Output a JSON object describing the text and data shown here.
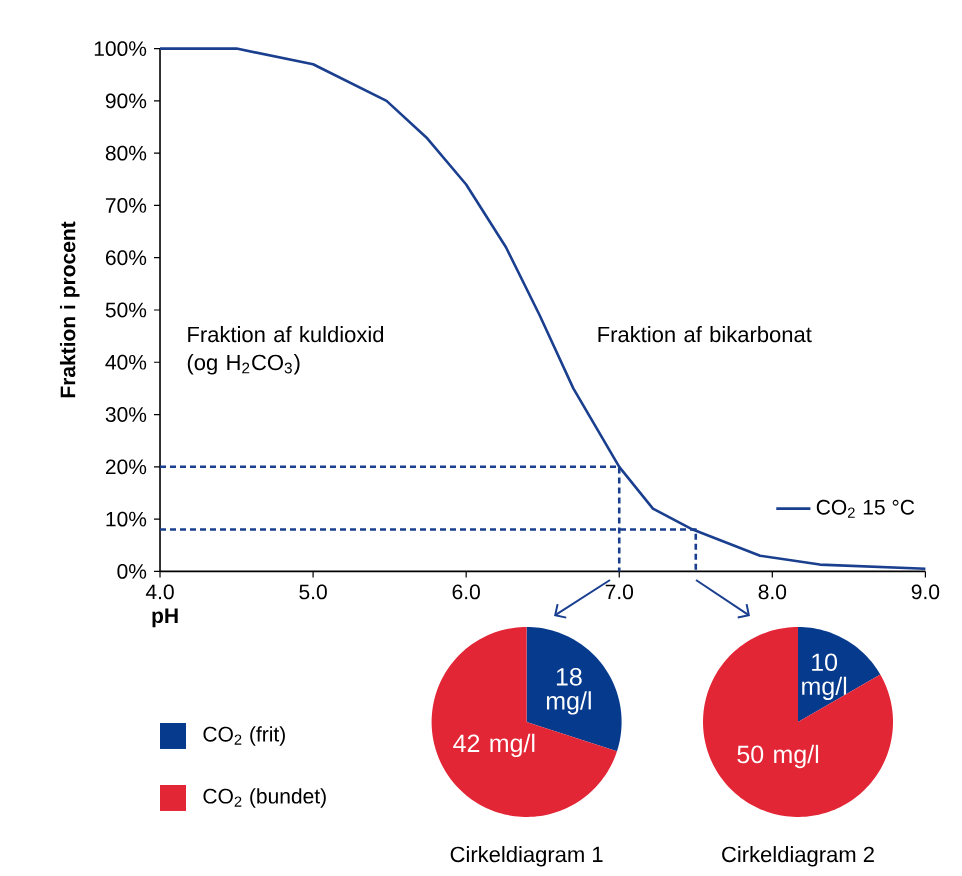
{
  "chart_data": [
    {
      "type": "line",
      "ylabel": "Fraktion i procent",
      "xlabel": "pH",
      "annotations": [
        "Fraktion af kuldioxid (og H$_{2}$CO$_{3}$)",
        "Fraktion af bikarbonat"
      ],
      "series": [
        {
          "name": "CO$_{2}$ 15 °C",
          "color": "#1a3f8f",
          "x": [
            4.0,
            4.5,
            5.0,
            5.48,
            5.74,
            6.0,
            6.26,
            6.48,
            6.7,
            7.0,
            7.22,
            7.48,
            7.92,
            8.31,
            9.0
          ],
          "values": [
            100,
            100,
            97,
            90,
            83,
            74,
            62,
            49,
            35,
            20,
            12,
            8,
            3,
            1.3,
            0.5
          ]
        },
        {
          "color": "#1a3f8f",
          "line_style": "dashed",
          "x": [
            4.0,
            7.0,
            7.0
          ],
          "values": [
            20,
            20,
            0
          ]
        },
        {
          "color": "#1a3f8f",
          "line_style": "dashed",
          "x": [
            4.0,
            7.5,
            7.5
          ],
          "values": [
            8,
            8,
            0
          ]
        }
      ],
      "xlim": [
        4,
        9
      ],
      "ylim": [
        0,
        100
      ],
      "xticks": [
        {
          "value": 4,
          "label": "4.0"
        },
        {
          "value": 5,
          "label": "5.0"
        },
        {
          "value": 6,
          "label": "6.0"
        },
        {
          "value": 7,
          "label": "7.0"
        },
        {
          "value": 8,
          "label": "8.0"
        },
        {
          "value": 9,
          "label": "9.0"
        }
      ],
      "yticks": [
        {
          "value": 0,
          "label": "0%"
        },
        {
          "value": 10,
          "label": "10%"
        },
        {
          "value": 20,
          "label": "20%"
        },
        {
          "value": 30,
          "label": "30%"
        },
        {
          "value": 40,
          "label": "40%"
        },
        {
          "value": 50,
          "label": "50%"
        },
        {
          "value": 60,
          "label": "60%"
        },
        {
          "value": 70,
          "label": "70%"
        },
        {
          "value": 80,
          "label": "80%"
        },
        {
          "value": 90,
          "label": "90%"
        },
        {
          "value": 100,
          "label": "100%"
        }
      ],
      "legend": "right"
    },
    {
      "type": "pie",
      "title": "Cirkeldiagram 1",
      "categories": [
        "CO$_{2}$ (frit)",
        "CO$_{2}$ (bundet)"
      ],
      "values": [
        18,
        42
      ],
      "value_labels": [
        "18 mg/l",
        "42 mg/l"
      ],
      "colors": [
        "#063a8c",
        "#e32636"
      ],
      "legend": "left"
    },
    {
      "type": "pie",
      "title": "Cirkeldiagram 2",
      "categories": [
        null,
        null
      ],
      "values": [
        10,
        50
      ],
      "value_labels": [
        "10 mg/l",
        "50 mg/l"
      ],
      "colors": [
        "#063a8c",
        "#e32636"
      ]
    }
  ]
}
